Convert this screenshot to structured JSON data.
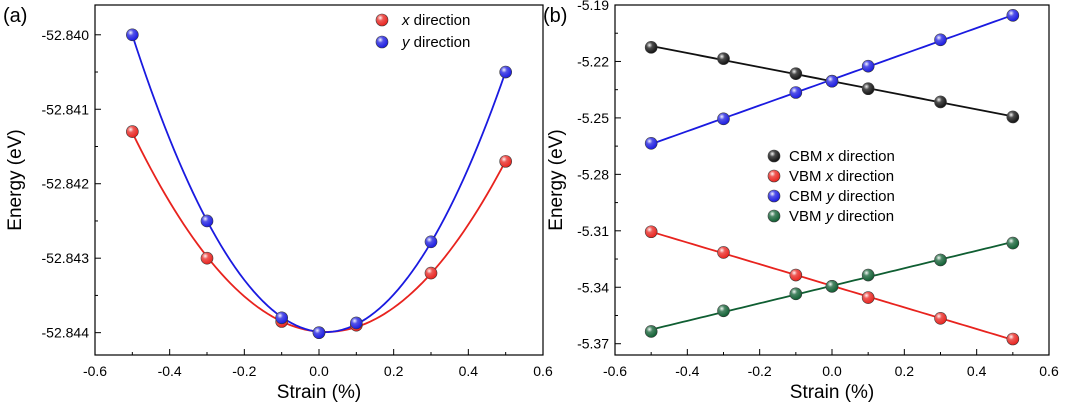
{
  "chart_data": [
    {
      "type": "scatter",
      "panel_label": "(a)",
      "title": "",
      "xlabel": "Strain (%)",
      "ylabel": "Energy (eV)",
      "xlim": [
        -0.6,
        0.6
      ],
      "ylim": [
        -52.8443,
        -52.8396
      ],
      "xticks": [
        -0.6,
        -0.4,
        -0.2,
        0.0,
        0.2,
        0.4,
        0.6
      ],
      "xtick_labels": [
        "-0.6",
        "-0.4",
        "-0.2",
        "0.0",
        "0.2",
        "0.4",
        "0.6"
      ],
      "yticks": [
        -52.844,
        -52.843,
        -52.842,
        -52.841,
        -52.84
      ],
      "ytick_labels": [
        "-52.844",
        "-52.843",
        "-52.842",
        "-52.841",
        "-52.840"
      ],
      "grid": false,
      "legend_position": "top-right",
      "series": [
        {
          "name": "x direction",
          "legend_prefix": "x",
          "legend_suffix": " direction",
          "color": "#e8231e",
          "x": [
            -0.5,
            -0.3,
            -0.1,
            0.0,
            0.1,
            0.3,
            0.5
          ],
          "y": [
            -52.8413,
            -52.843,
            -52.84385,
            -52.844,
            -52.8439,
            -52.8432,
            -52.8417
          ],
          "fit": "quadratic"
        },
        {
          "name": "y direction",
          "legend_prefix": "y",
          "legend_suffix": " direction",
          "color": "#1a1ae0",
          "x": [
            -0.5,
            -0.3,
            -0.1,
            0.0,
            0.1,
            0.3,
            0.5
          ],
          "y": [
            -52.84,
            -52.8425,
            -52.8438,
            -52.844,
            -52.84387,
            -52.84278,
            -52.8405
          ],
          "fit": "quadratic"
        }
      ]
    },
    {
      "type": "scatter",
      "panel_label": "(b)",
      "title": "",
      "xlabel": "Strain (%)",
      "ylabel": "Energy (eV)",
      "xlim": [
        -0.6,
        0.6
      ],
      "ylim": [
        -5.376,
        -5.19
      ],
      "xticks": [
        -0.6,
        -0.4,
        -0.2,
        0.0,
        0.2,
        0.4,
        0.6
      ],
      "xtick_labels": [
        "-0.6",
        "-0.4",
        "-0.2",
        "0.0",
        "0.2",
        "0.4",
        "0.6"
      ],
      "yticks": [
        -5.37,
        -5.34,
        -5.31,
        -5.28,
        -5.25,
        -5.22,
        -5.19
      ],
      "ytick_labels": [
        "-5.37",
        "-5.34",
        "-5.31",
        "-5.28",
        "-5.25",
        "-5.22",
        "-5.19"
      ],
      "grid": false,
      "legend_position": "center-right",
      "series": [
        {
          "name": "CBM x direction",
          "legend_prefix": "CBM ",
          "legend_italic": "x",
          "legend_suffix": " direction",
          "color": "#111111",
          "x": [
            -0.5,
            -0.3,
            -0.1,
            0.0,
            0.1,
            0.3,
            0.5
          ],
          "y": [
            -5.2125,
            -5.2185,
            -5.2265,
            -5.2305,
            -5.2345,
            -5.2415,
            -5.2495
          ],
          "fit": "linear"
        },
        {
          "name": "VBM x direction",
          "legend_prefix": "VBM ",
          "legend_italic": "x",
          "legend_suffix": " direction",
          "color": "#e8231e",
          "x": [
            -0.5,
            -0.3,
            -0.1,
            0.0,
            0.1,
            0.3,
            0.5
          ],
          "y": [
            -5.3105,
            -5.3215,
            -5.3335,
            -5.3395,
            -5.3455,
            -5.3565,
            -5.3675
          ],
          "fit": "linear"
        },
        {
          "name": "CBM y direction",
          "legend_prefix": "CBM ",
          "legend_italic": "y",
          "legend_suffix": " direction",
          "color": "#1a1ae0",
          "x": [
            -0.5,
            -0.3,
            -0.1,
            0.0,
            0.1,
            0.3,
            0.5
          ],
          "y": [
            -5.2635,
            -5.2505,
            -5.2365,
            -5.2305,
            -5.2225,
            -5.2085,
            -5.1955
          ],
          "fit": "linear"
        },
        {
          "name": "VBM y direction",
          "legend_prefix": "VBM ",
          "legend_italic": "y",
          "legend_suffix": " direction",
          "color": "#0f5e32",
          "x": [
            -0.5,
            -0.3,
            -0.1,
            0.0,
            0.1,
            0.3,
            0.5
          ],
          "y": [
            -5.3635,
            -5.3525,
            -5.3435,
            -5.3395,
            -5.3335,
            -5.3255,
            -5.3165
          ],
          "fit": "linear"
        }
      ]
    }
  ]
}
